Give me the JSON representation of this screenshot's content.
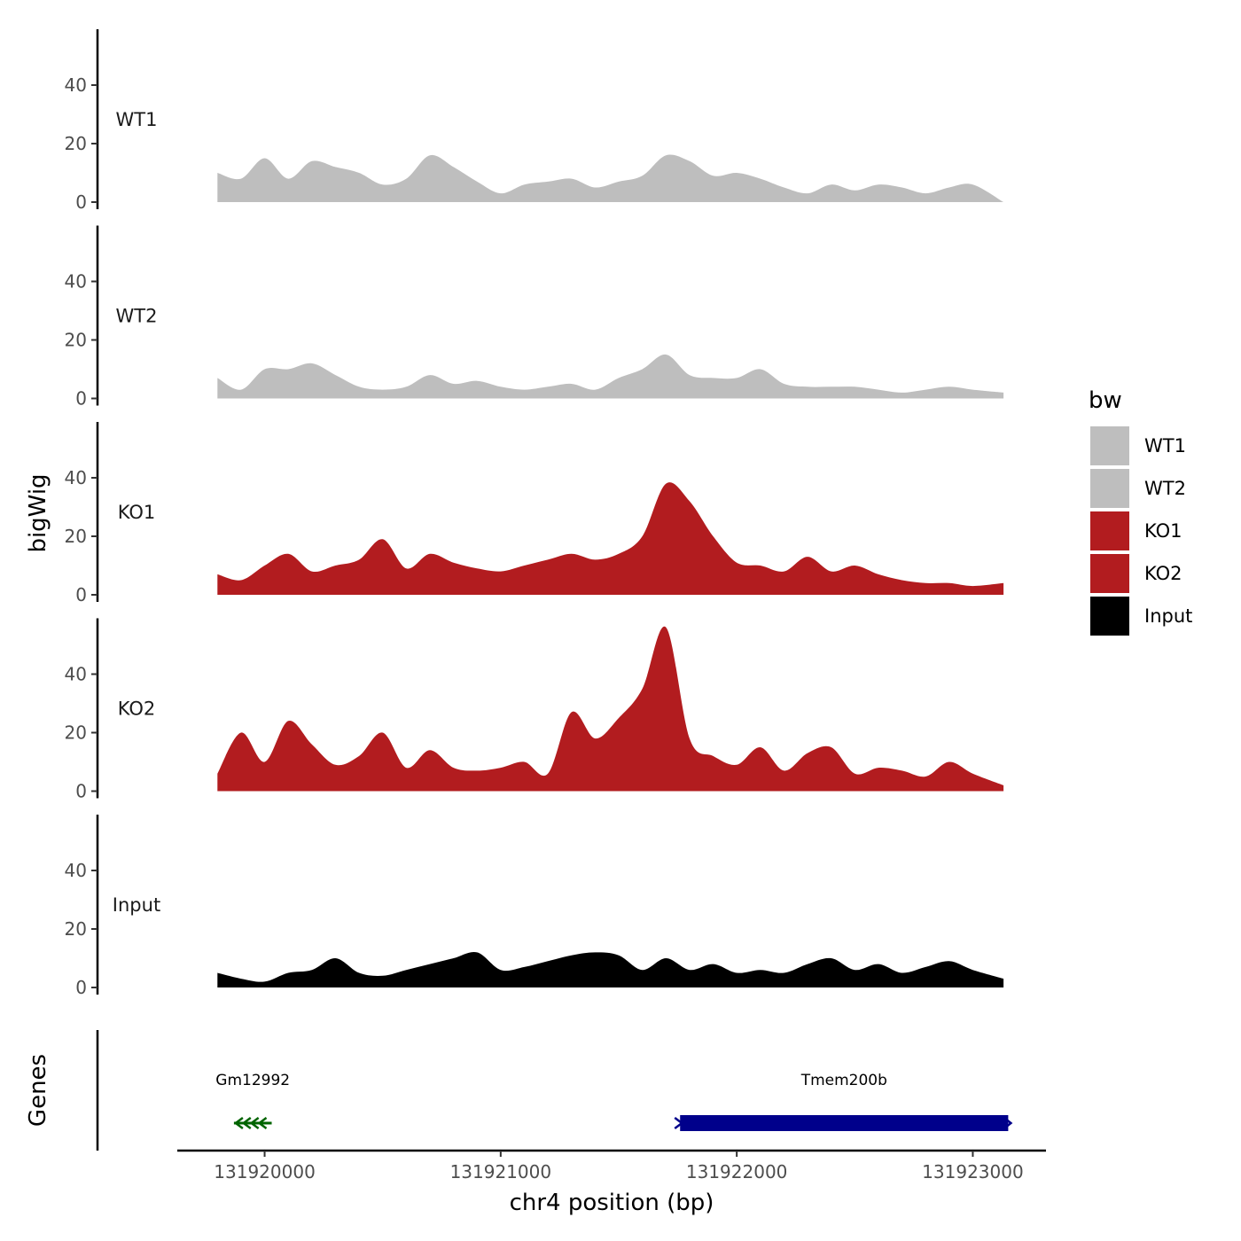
{
  "chart_data": {
    "type": "area",
    "chromosome": "chr4",
    "xlabel": "chr4 position (bp)",
    "ylabel": "bigWig",
    "genes_label": "Genes",
    "xlim": [
      131919630,
      131923310
    ],
    "ylim": [
      0,
      60
    ],
    "x_ticks": [
      {
        "value": 131920000,
        "label": "131920000"
      },
      {
        "value": 131921000,
        "label": "131921000"
      },
      {
        "value": 131922000,
        "label": "131922000"
      },
      {
        "value": 131923000,
        "label": "131923000"
      }
    ],
    "y_ticks": [
      {
        "value": 0,
        "label": "0"
      },
      {
        "value": 20,
        "label": "20"
      },
      {
        "value": 40,
        "label": "40"
      }
    ],
    "legend": {
      "title": "bw",
      "entries": [
        {
          "label": "WT1",
          "color": "#bebebe"
        },
        {
          "label": "WT2",
          "color": "#bebebe"
        },
        {
          "label": "KO1",
          "color": "#b21c1f"
        },
        {
          "label": "KO2",
          "color": "#b21c1f"
        },
        {
          "label": "Input",
          "color": "#000000"
        }
      ]
    },
    "x": [
      131919800,
      131919900,
      131920000,
      131920100,
      131920200,
      131920300,
      131920400,
      131920500,
      131920600,
      131920700,
      131920800,
      131920900,
      131921000,
      131921100,
      131921200,
      131921300,
      131921400,
      131921500,
      131921600,
      131921700,
      131921800,
      131921900,
      131922000,
      131922100,
      131922200,
      131922300,
      131922400,
      131922500,
      131922600,
      131922700,
      131922800,
      131922900,
      131923000,
      131923130
    ],
    "series": [
      {
        "name": "WT1",
        "color": "#bebebe",
        "values": [
          10,
          8,
          15,
          8,
          14,
          12,
          10,
          6,
          8,
          16,
          12,
          7,
          3,
          6,
          7,
          8,
          5,
          7,
          9,
          16,
          14,
          9,
          10,
          8,
          5,
          3,
          6,
          4,
          6,
          5,
          3,
          5,
          6,
          0
        ]
      },
      {
        "name": "WT2",
        "color": "#bebebe",
        "values": [
          7,
          3,
          10,
          10,
          12,
          8,
          4,
          3,
          4,
          8,
          5,
          6,
          4,
          3,
          4,
          5,
          3,
          7,
          10,
          15,
          8,
          7,
          7,
          10,
          5,
          4,
          4,
          4,
          3,
          2,
          3,
          4,
          3,
          2
        ]
      },
      {
        "name": "KO1",
        "color": "#b21c1f",
        "values": [
          7,
          5,
          10,
          14,
          8,
          10,
          12,
          19,
          9,
          14,
          11,
          9,
          8,
          10,
          12,
          14,
          12,
          14,
          20,
          38,
          32,
          20,
          11,
          10,
          8,
          13,
          8,
          10,
          7,
          5,
          4,
          4,
          3,
          4
        ]
      },
      {
        "name": "KO2",
        "color": "#b21c1f",
        "values": [
          6,
          20,
          10,
          24,
          16,
          9,
          12,
          20,
          8,
          14,
          8,
          7,
          8,
          10,
          6,
          27,
          18,
          25,
          35,
          56,
          18,
          12,
          9,
          15,
          7,
          13,
          15,
          6,
          8,
          7,
          5,
          10,
          6,
          2
        ]
      },
      {
        "name": "Input",
        "color": "#000000",
        "values": [
          5,
          3,
          2,
          5,
          6,
          10,
          5,
          4,
          6,
          8,
          10,
          12,
          6,
          7,
          9,
          11,
          12,
          11,
          6,
          10,
          6,
          8,
          5,
          6,
          5,
          8,
          10,
          6,
          8,
          5,
          7,
          9,
          6,
          3
        ]
      }
    ],
    "genes": [
      {
        "name": "Gm12992",
        "start": 131919870,
        "end": 131920030,
        "strand": "-",
        "color": "#006400"
      },
      {
        "name": "Tmem200b",
        "start": 131921760,
        "end": 131923150,
        "strand": "+",
        "color": "#00008b"
      }
    ]
  }
}
